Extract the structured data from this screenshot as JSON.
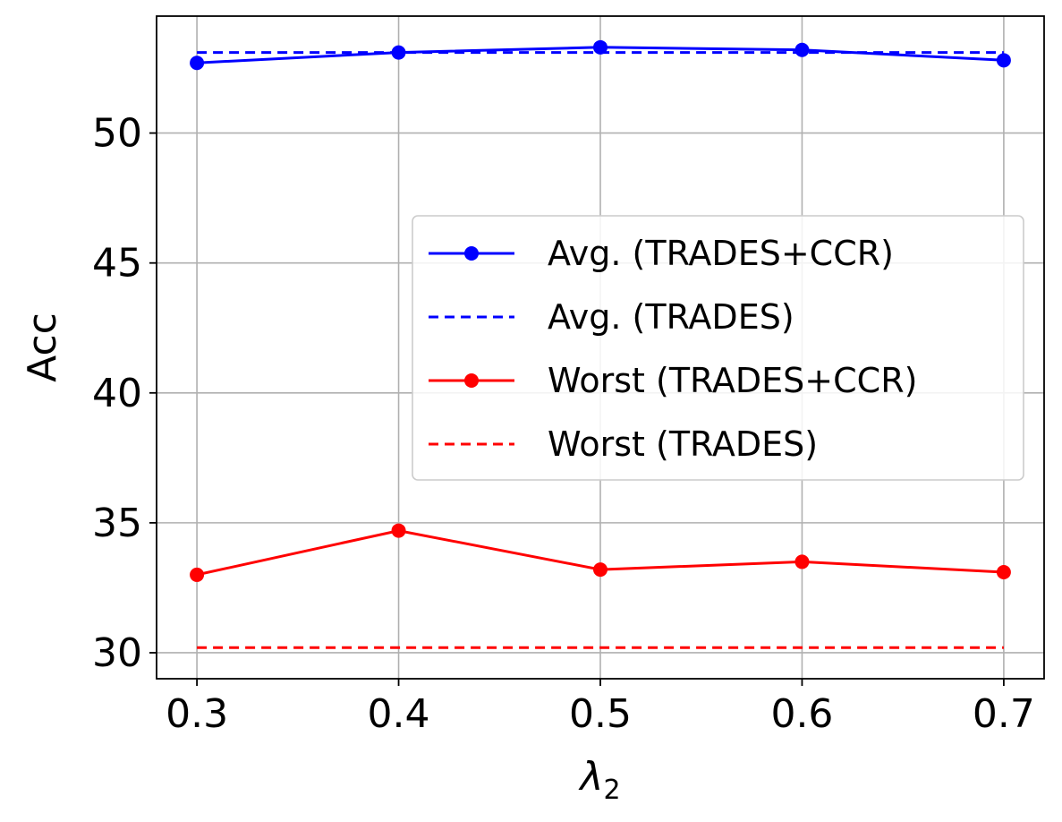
{
  "chart_data": {
    "type": "line",
    "xlabel": "λ",
    "xlabel_subscript": "2",
    "ylabel": "Acc",
    "x": [
      0.3,
      0.4,
      0.5,
      0.6,
      0.7
    ],
    "x_tick_labels": [
      "0.3",
      "0.4",
      "0.5",
      "0.6",
      "0.7"
    ],
    "y_ticks": [
      30,
      35,
      40,
      45,
      50
    ],
    "y_tick_labels": [
      "30",
      "35",
      "40",
      "45",
      "50"
    ],
    "xlim": [
      0.28,
      0.72
    ],
    "ylim": [
      29.0,
      54.5
    ],
    "grid": true,
    "legend_position": "center-right",
    "series": [
      {
        "name": "Avg. (TRADES+CCR)",
        "values": [
          52.7,
          53.1,
          53.3,
          53.2,
          52.8
        ],
        "color": "#0000ff",
        "style": "solid",
        "marker": "circle"
      },
      {
        "name": "Avg. (TRADES)",
        "values": [
          53.1,
          53.1,
          53.1,
          53.1,
          53.1
        ],
        "color": "#0000ff",
        "style": "dashed",
        "marker": "none"
      },
      {
        "name": "Worst (TRADES+CCR)",
        "values": [
          33.0,
          34.7,
          33.2,
          33.5,
          33.1
        ],
        "color": "#ff0000",
        "style": "solid",
        "marker": "circle"
      },
      {
        "name": "Worst (TRADES)",
        "values": [
          30.2,
          30.2,
          30.2,
          30.2,
          30.2
        ],
        "color": "#ff0000",
        "style": "dashed",
        "marker": "none"
      }
    ]
  }
}
